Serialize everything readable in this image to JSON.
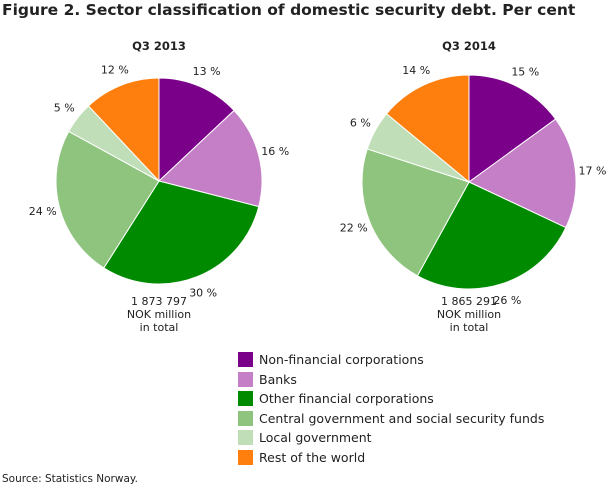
{
  "title": "Figure 2. Sector classification of domestic security debt. Per cent",
  "source": "Source: Statistics Norway.",
  "chart_data": [
    {
      "type": "pie",
      "title": "Q3 2013",
      "total_lines": [
        "1 873 797",
        "NOK million",
        "in total"
      ],
      "categories": [
        "Non-financial corporations",
        "Banks",
        "Other financial corporations",
        "Central government and social security funds",
        "Local government",
        "Rest of the world"
      ],
      "values": [
        13,
        16,
        30,
        24,
        5,
        12
      ],
      "labels": [
        "13 %",
        "16 %",
        "30 %",
        "24 %",
        "5 %",
        "12 %"
      ]
    },
    {
      "type": "pie",
      "title": "Q3 2014",
      "total_lines": [
        "1 865 291",
        "NOK million",
        "in total"
      ],
      "categories": [
        "Non-financial corporations",
        "Banks",
        "Other financial corporations",
        "Central government and social security funds",
        "Local government",
        "Rest of the world"
      ],
      "values": [
        15,
        17,
        26,
        22,
        6,
        14
      ],
      "labels": [
        "15 %",
        "17 %",
        "26 %",
        "22 %",
        "6 %",
        "14 %"
      ]
    }
  ],
  "legend": [
    {
      "label": "Non-financial corporations",
      "color": "#7a0089"
    },
    {
      "label": "Banks",
      "color": "#c47fc7"
    },
    {
      "label": "Other financial corporations",
      "color": "#008a00"
    },
    {
      "label": "Central government and social security funds",
      "color": "#8fc47f"
    },
    {
      "label": "Local government",
      "color": "#c0dfb8"
    },
    {
      "label": "Rest of the world",
      "color": "#ff7f0e"
    }
  ],
  "legend_placement": "bottom"
}
